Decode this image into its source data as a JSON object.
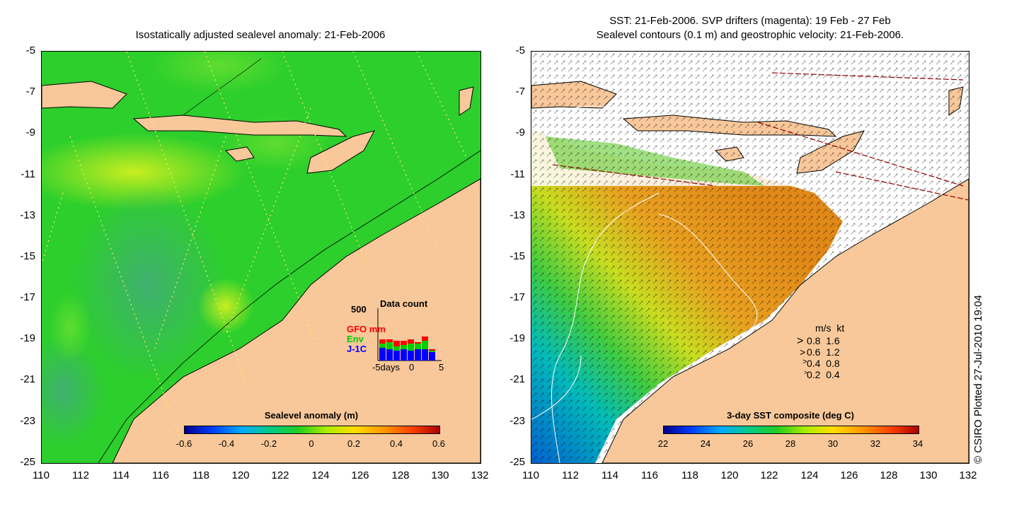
{
  "left_panel": {
    "title": "Isostatically adjusted sealevel anomaly: 21-Feb-2006",
    "y_ticks": [
      "-5",
      "-7",
      "-9",
      "-11",
      "-13",
      "-15",
      "-17",
      "-19",
      "-21",
      "-23",
      "-25"
    ],
    "x_ticks": [
      "110",
      "112",
      "114",
      "116",
      "118",
      "120",
      "122",
      "124",
      "126",
      "128",
      "130",
      "132"
    ],
    "colorbar": {
      "title": "Sealevel anomaly (m)",
      "labels": [
        "-0.6",
        "-0.4",
        "-0.2",
        "0",
        "0.2",
        "0.4",
        "0.6"
      ]
    },
    "inset": {
      "title": "Data count",
      "ymax": "500",
      "legend": [
        "GFO mm",
        "Env",
        "J-1C"
      ],
      "legend_colors": [
        "#ff0000",
        "#00cc00",
        "#0000ff"
      ],
      "xlabels": [
        "-5days",
        "0",
        "5"
      ]
    }
  },
  "right_panel": {
    "title_line1": "SST: 21-Feb-2006. SVP drifters (magenta): 19 Feb - 27 Feb",
    "title_line2": "Sealevel contours (0.1 m) and geostrophic velocity: 21-Feb-2006.",
    "y_ticks": [
      "-5",
      "-7",
      "-9",
      "-11",
      "-13",
      "-15",
      "-17",
      "-19",
      "-21",
      "-23",
      "-25"
    ],
    "x_ticks": [
      "110",
      "112",
      "114",
      "116",
      "118",
      "120",
      "122",
      "124",
      "126",
      "128",
      "130",
      "132"
    ],
    "colorbar": {
      "title": "3-day SST composite (deg C)",
      "labels": [
        "22",
        "24",
        "26",
        "28",
        "30",
        "32",
        "34"
      ]
    },
    "speed_legend": {
      "header": "m/s  kt",
      "rows": [
        "0.8  1.6",
        "0.6  1.2",
        "0.4  0.8",
        "0.2  0.4"
      ]
    }
  },
  "credit": "© CSIRO Plotted 27-Jul-2010 19:04",
  "colors": {
    "land": "#f8c89a",
    "sla_green": "#22cc22",
    "sst_orange": "#e8a020"
  }
}
